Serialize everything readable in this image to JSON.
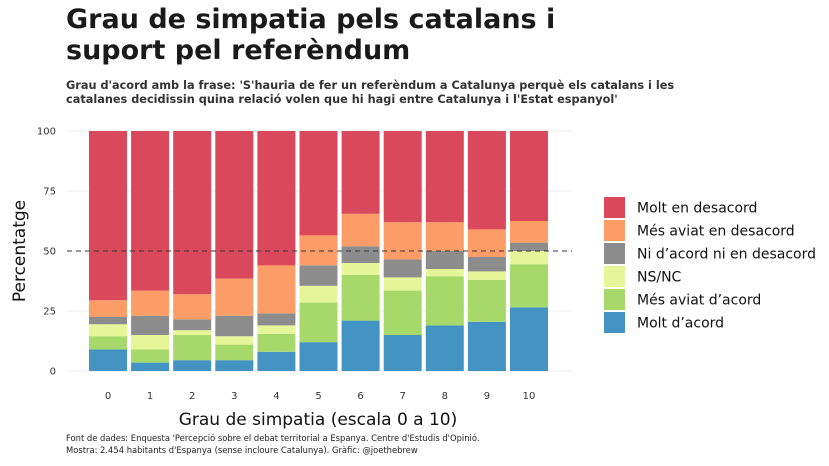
{
  "title_line1": "Grau de simpatia pels catalans i",
  "title_line2": "suport pel referèndum",
  "subtitle_line1": "Grau d'acord amb la frase: 'S'hauria de fer un referèndum a Catalunya perquè els catalans i les",
  "subtitle_line2": "catalanes decidissin quina relació volen que hi hagi entre Catalunya i l'Estat espanyol'",
  "caption_line1": "Font de dades: Enquesta 'Percepció sobre el debat territorial a Espanya. Centre d'Estudis d'Opinió.",
  "caption_line2": "Mostra: 2.454 habitants d'Espanya (sense incloure Catalunya). Gràfic: @joethebrew",
  "chart_data": {
    "type": "bar",
    "stacked": true,
    "xlabel": "Grau de simpatia (escala 0 a 10)",
    "ylabel": "Percentatge",
    "ylim": [
      0,
      100
    ],
    "yticks": [
      0,
      25,
      50,
      75,
      100
    ],
    "categories": [
      "0",
      "1",
      "2",
      "3",
      "4",
      "5",
      "6",
      "7",
      "8",
      "9",
      "10"
    ],
    "reference_line": 50,
    "grid": true,
    "legend_position": "right",
    "series": [
      {
        "name": "Molt d’acord",
        "color": "#4393c3",
        "values": [
          9,
          3.5,
          4.5,
          4.5,
          8,
          12,
          21,
          15,
          19,
          20.5,
          26.5
        ]
      },
      {
        "name": "Més aviat d’acord",
        "color": "#a6d96a",
        "values": [
          5.5,
          5.5,
          10.5,
          6.5,
          7.5,
          16.5,
          19,
          18.5,
          20.5,
          17.5,
          18
        ]
      },
      {
        "name": "NS/NC",
        "color": "#e6f598",
        "values": [
          5,
          6,
          2,
          3.5,
          3.5,
          7,
          5,
          5.5,
          3,
          3.5,
          5.5
        ]
      },
      {
        "name": "Ni d’acord ni en desacord",
        "color": "#8c8c8c",
        "values": [
          3,
          8,
          4.5,
          8.5,
          5,
          8.5,
          7,
          7.5,
          7.5,
          6,
          3.5
        ]
      },
      {
        "name": "Més aviat en desacord",
        "color": "#fc9d68",
        "values": [
          7,
          10.5,
          10.5,
          15.5,
          20,
          12.5,
          13.5,
          15.5,
          12,
          11.5,
          9
        ]
      },
      {
        "name": "Molt en desacord",
        "color": "#d9485b",
        "values": [
          70.5,
          66.5,
          68,
          61.5,
          56,
          43.5,
          34.5,
          38,
          38,
          41,
          37.5
        ]
      }
    ],
    "legend_order": [
      "Molt en desacord",
      "Més aviat en desacord",
      "Ni d’acord ni en desacord",
      "NS/NC",
      "Més aviat d’acord",
      "Molt d’acord"
    ]
  }
}
